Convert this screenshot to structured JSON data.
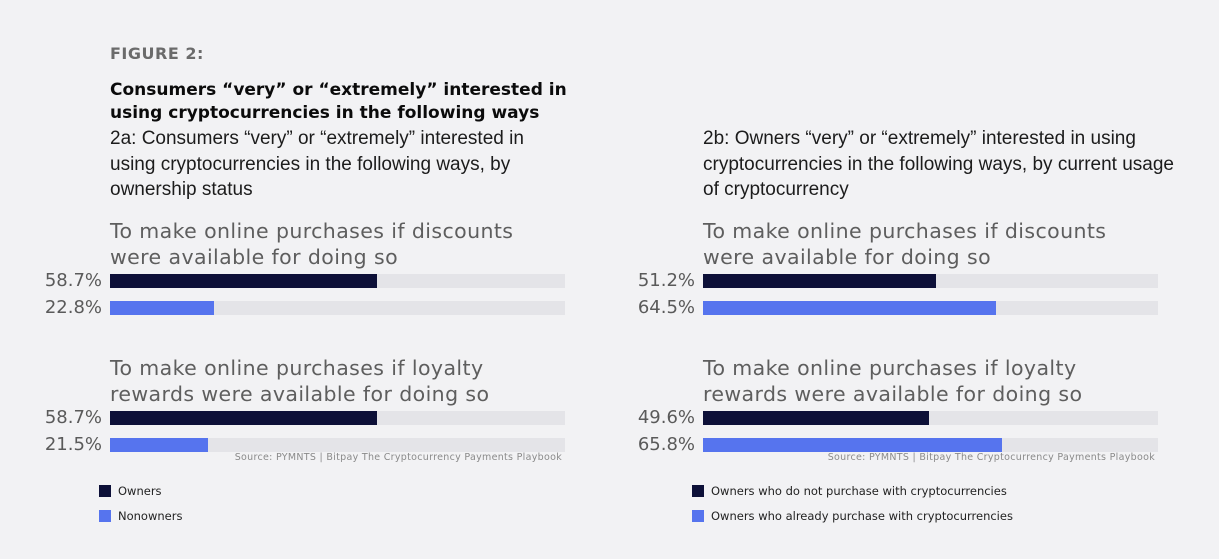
{
  "figure_label": "FIGURE 2:",
  "main_title": "Consumers “very” or “extremely” interested in using cryptocurrencies in the following ways",
  "chart_data": [
    {
      "type": "bar",
      "orientation": "horizontal",
      "title": "2a: Consumers “very” or “extremely” interested in using cryptocurrencies in the following ways, by ownership status",
      "xlim": [
        0,
        100
      ],
      "categories": [
        "To make online purchases if discounts were available for doing so",
        "To make online purchases if loyalty rewards were available for doing so"
      ],
      "series": [
        {
          "name": "Owners",
          "color": "#0d1038",
          "values": [
            58.7,
            58.7
          ],
          "labels": [
            "58.7%",
            "58.7%"
          ]
        },
        {
          "name": "Nonowners",
          "color": "#5674ee",
          "values": [
            22.8,
            21.5
          ],
          "labels": [
            "22.8%",
            "21.5%"
          ]
        }
      ],
      "source": "Source: PYMNTS | Bitpay The Cryptocurrency Payments Playbook",
      "legend": "bottom-left"
    },
    {
      "type": "bar",
      "orientation": "horizontal",
      "title": "2b: Owners “very” or “extremely” interested in using cryptocurrencies in the following ways, by current usage of cryptocurrency",
      "xlim": [
        0,
        100
      ],
      "categories": [
        "To make online purchases if discounts were available for doing so",
        "To make online purchases if loyalty rewards were available for doing so"
      ],
      "series": [
        {
          "name": "Owners who do not purchase with cryptocurrencies",
          "color": "#0d1038",
          "values": [
            51.2,
            49.6
          ],
          "labels": [
            "51.2%",
            "49.6%"
          ]
        },
        {
          "name": "Owners who already purchase with cryptocurrencies",
          "color": "#5674ee",
          "values": [
            64.5,
            65.8
          ],
          "labels": [
            "64.5%",
            "65.8%"
          ]
        }
      ],
      "source": "Source: PYMNTS | Bitpay The Cryptocurrency Payments Playbook",
      "legend": "bottom-left"
    }
  ]
}
